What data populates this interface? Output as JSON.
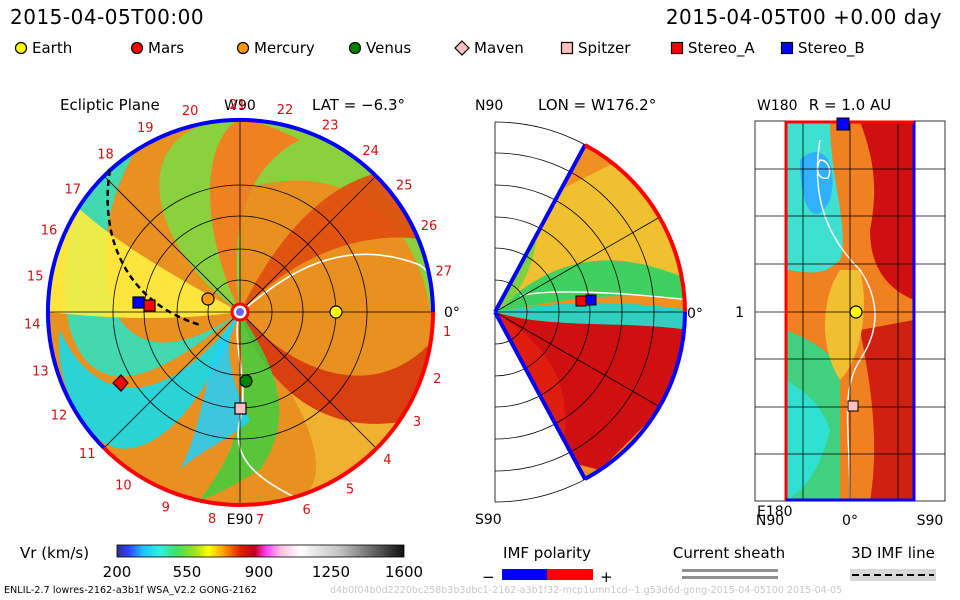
{
  "header": {
    "datetime": "2015-04-05T00:00",
    "elapsed": "2015-04-05T00 +0.00 day"
  },
  "legend": [
    {
      "label": "Earth",
      "shape": "circle",
      "color": "#ffff00"
    },
    {
      "label": "Mars",
      "shape": "circle",
      "color": "#ff0000"
    },
    {
      "label": "Mercury",
      "shape": "circle",
      "color": "#ff9900"
    },
    {
      "label": "Venus",
      "shape": "circle",
      "color": "#008000"
    },
    {
      "label": "Maven",
      "shape": "diamond",
      "color": "#ffc0c0"
    },
    {
      "label": "Spitzer",
      "shape": "square",
      "color": "#ffc0c0"
    },
    {
      "label": "Stereo_A",
      "shape": "square",
      "color": "#ff0000"
    },
    {
      "label": "Stereo_B",
      "shape": "square",
      "color": "#0000ff"
    }
  ],
  "ecliptic": {
    "title": "Ecliptic Plane",
    "lat": "LAT = −6.3°",
    "top_label": "W90",
    "bottom_label": "E90",
    "right_label": "0°",
    "carrington_ticks": [
      "1",
      "2",
      "3",
      "4",
      "5",
      "6",
      "7",
      "8",
      "9",
      "10",
      "11",
      "12",
      "13",
      "14",
      "15",
      "16",
      "17",
      "18",
      "19",
      "20",
      "21",
      "22",
      "23",
      "24",
      "25",
      "26",
      "27"
    ]
  },
  "meridional": {
    "lon": "LON = W176.2°",
    "top_label": "N90",
    "bottom_label": "S90",
    "right_label": "0°"
  },
  "radial": {
    "r": "R = 1.0 AU",
    "top_label": "W180",
    "bottom_label": "E180",
    "middle_label": "1",
    "x_left": "N90",
    "x_mid": "0°",
    "x_right": "S90"
  },
  "colorbar": {
    "label": "Vr (km/s)",
    "ticks": [
      "200",
      "550",
      "900",
      "1250",
      "1600"
    ]
  },
  "imf": {
    "title": "IMF polarity",
    "minus": "−",
    "plus": "+",
    "colors": [
      "#0000ff",
      "#ff0000"
    ]
  },
  "current_sheath": {
    "title": "Current sheath"
  },
  "imf3d": {
    "title": "3D IMF line"
  },
  "footer": "ENLIL-2.7 lowres-2162-a3b1f WSA_V2.2 GONG-2162",
  "footer_faint": "d4b0f04b0d2220bc258b3b3dbc1-2162-a3b1f32-mcp1umn1cd--1.g53d6d-gong-2015-04-05100  2015-04-05"
}
